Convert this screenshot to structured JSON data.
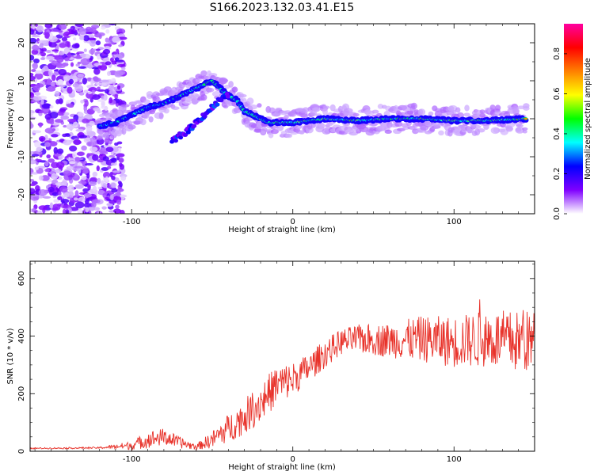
{
  "figure": {
    "title": "S166.2023.132.03.41.E15"
  },
  "chart_data": [
    {
      "type": "heatmap",
      "title": "S166.2023.132.03.41.E15",
      "xlabel": "Height of straight line (km)",
      "ylabel": "Frequency (Hz)",
      "xlim": [
        -163,
        150
      ],
      "ylim": [
        -25,
        25
      ],
      "x_ticks": [
        -100,
        0,
        100
      ],
      "y_ticks": [
        -20,
        -10,
        0,
        10,
        20
      ],
      "colorbar": {
        "label": "Normalized spectral amplitude",
        "range": [
          0,
          0.95
        ],
        "ticks": [
          0.0,
          0.2,
          0.4,
          0.6,
          0.8
        ],
        "colors": [
          "#ffffff",
          "#7f00ff",
          "#0000ff",
          "#00ffff",
          "#00ff00",
          "#ffff00",
          "#ff8000",
          "#ff0000",
          "#ff00a0"
        ]
      },
      "ridge": {
        "x": [
          -120,
          -110,
          -100,
          -90,
          -80,
          -70,
          -60,
          -50,
          -40,
          -35,
          -30,
          -20,
          -15,
          -10,
          0,
          20,
          40,
          60,
          80,
          100,
          120,
          145
        ],
        "y": [
          -2,
          -1,
          1,
          3,
          4,
          6,
          8,
          10,
          6,
          5,
          2,
          0,
          -1,
          -1,
          -1,
          0,
          -0.5,
          0,
          0,
          -0.5,
          -0.5,
          0
        ]
      },
      "secondary_ridge": {
        "x": [
          -75,
          -65,
          -55,
          -45,
          -40
        ],
        "y": [
          -6,
          -3,
          1,
          5,
          6
        ]
      },
      "noise_region": {
        "x_range": [
          -163,
          -105
        ],
        "y_range": [
          -25,
          25
        ]
      },
      "grid": false
    },
    {
      "type": "line",
      "xlabel": "Height of straight line (km)",
      "ylabel": "SNR (10 * v/v)",
      "xlim": [
        -163,
        150
      ],
      "ylim": [
        0,
        660
      ],
      "x_ticks": [
        -100,
        0,
        100
      ],
      "y_ticks": [
        0,
        200,
        400,
        600
      ],
      "series": [
        {
          "color": "#e8322a",
          "trend_x": [
            -163,
            -120,
            -100,
            -90,
            -80,
            -70,
            -60,
            -50,
            -40,
            -30,
            -20,
            -10,
            0,
            10,
            20,
            30,
            40,
            60,
            80,
            100,
            120,
            140,
            150
          ],
          "trend_y": [
            10,
            12,
            20,
            40,
            50,
            30,
            15,
            40,
            80,
            120,
            170,
            230,
            250,
            290,
            340,
            380,
            390,
            385,
            390,
            380,
            390,
            380,
            380
          ],
          "noise_amplitude": [
            2,
            3,
            15,
            30,
            30,
            20,
            10,
            30,
            50,
            60,
            70,
            70,
            60,
            50,
            50,
            45,
            50,
            60,
            80,
            90,
            100,
            110,
            110
          ]
        }
      ],
      "grid": false
    }
  ]
}
